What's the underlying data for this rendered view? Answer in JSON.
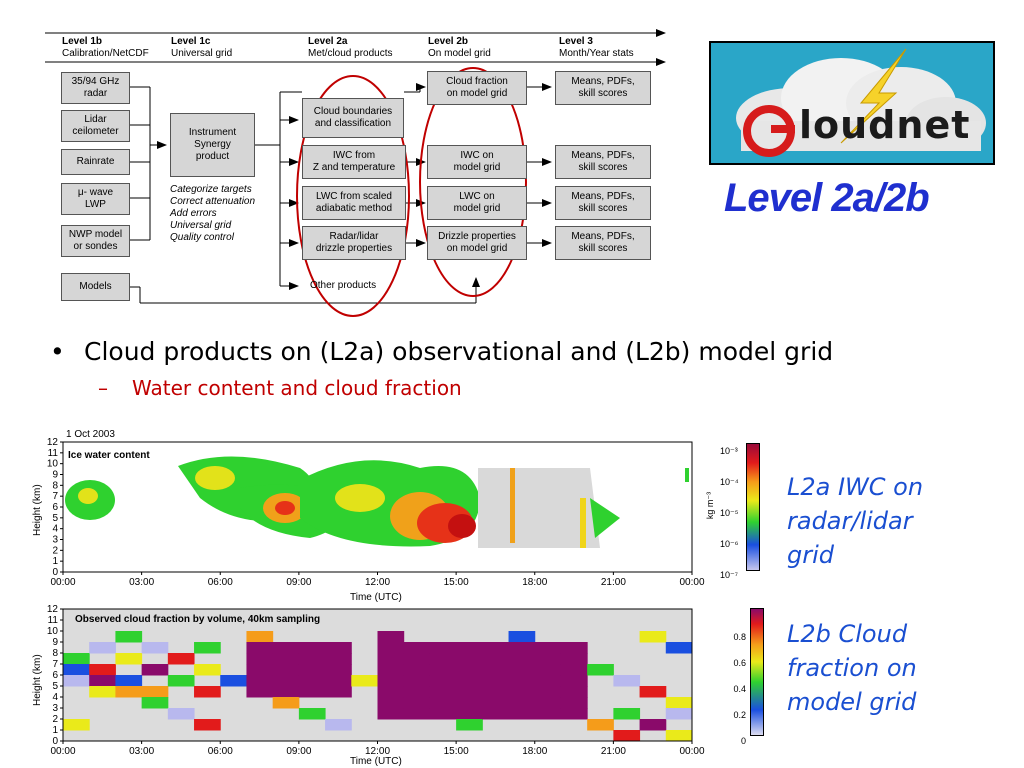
{
  "diagram": {
    "levels": [
      {
        "name": "Level 1b",
        "desc": "Calibration/NetCDF"
      },
      {
        "name": "Level 1c",
        "desc": "Universal grid"
      },
      {
        "name": "Level 2a",
        "desc": "Met/cloud products"
      },
      {
        "name": "Level 2b",
        "desc": "On model grid"
      },
      {
        "name": "Level 3",
        "desc": "Month/Year stats"
      }
    ],
    "inputs": [
      [
        "35/94 GHz",
        "radar"
      ],
      [
        "Lidar",
        "ceilometer"
      ],
      [
        "Rainrate"
      ],
      [
        "μ- wave",
        "LWP"
      ],
      [
        "NWP model",
        "or sondes"
      ],
      [
        "Models"
      ]
    ],
    "synergy": [
      "Instrument",
      "Synergy",
      "product"
    ],
    "synergy_notes": [
      "Categorize targets",
      "Correct attenuation",
      "Add errors",
      "Universal grid",
      "Quality control"
    ],
    "l2a": [
      [
        "Cloud boundaries",
        "and classification"
      ],
      [
        "IWC from",
        "Z and temperature"
      ],
      [
        "LWC from scaled",
        "adiabatic method"
      ],
      [
        "Radar/lidar",
        "drizzle properties"
      ]
    ],
    "other_products": "Other products",
    "l2b": [
      [
        "Cloud fraction",
        "on model grid"
      ],
      [
        "IWC on",
        "model grid"
      ],
      [
        "LWC on",
        "model grid"
      ],
      [
        "Drizzle properties",
        "on model grid"
      ]
    ],
    "l3": [
      [
        "Means, PDFs,",
        "skill scores"
      ],
      [
        "Means, PDFs,",
        "skill scores"
      ],
      [
        "Means, PDFs,",
        "skill scores"
      ],
      [
        "Means, PDFs,",
        "skill scores"
      ]
    ]
  },
  "logo": {
    "text": "loudnet",
    "initial": "C"
  },
  "slide_title": "Level 2a/2b",
  "bullets": {
    "main": "Cloud products on (L2a) observational and (L2b) model grid",
    "sub": "Water content and cloud fraction"
  },
  "plot1": {
    "date": "1 Oct 2003",
    "title": "Ice water content",
    "ylabel": "Height (km)",
    "xlabel": "Time (UTC)",
    "yticks": [
      "0",
      "1",
      "2",
      "3",
      "4",
      "5",
      "6",
      "7",
      "8",
      "9",
      "10",
      "11",
      "12"
    ],
    "xticks": [
      "00:00",
      "03:00",
      "06:00",
      "09:00",
      "12:00",
      "15:00",
      "18:00",
      "21:00",
      "00:00"
    ],
    "colorbar_label": "kg m⁻³",
    "colorbar_ticks": [
      "10⁻³",
      "10⁻⁴",
      "10⁻⁵",
      "10⁻⁶",
      "10⁻⁷"
    ]
  },
  "plot2": {
    "title": "Observed cloud fraction by volume, 40km sampling",
    "ylabel": "Height (km)",
    "xlabel": "Time (UTC)",
    "yticks": [
      "0",
      "1",
      "2",
      "3",
      "4",
      "5",
      "6",
      "7",
      "8",
      "9",
      "10",
      "11",
      "12"
    ],
    "xticks": [
      "00:00",
      "03:00",
      "06:00",
      "09:00",
      "12:00",
      "15:00",
      "18:00",
      "21:00",
      "00:00"
    ],
    "colorbar_ticks": [
      "0.8",
      "0.6",
      "0.4",
      "0.2",
      "0"
    ]
  },
  "side_labels": {
    "iwc": [
      "L2a IWC on",
      "radar/lidar",
      "grid"
    ],
    "cf": [
      "L2b Cloud",
      "fraction on",
      "model grid"
    ]
  },
  "colors": {
    "ellipse": "#c00000",
    "title": "#1f2fcf",
    "subbullet": "#c00000",
    "side": "#1a4fd1",
    "box": "#d6d6d6"
  }
}
